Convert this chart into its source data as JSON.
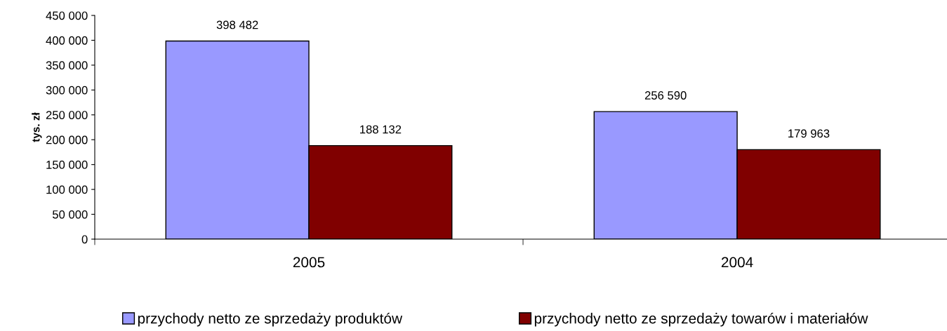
{
  "chart_data": {
    "type": "bar",
    "ylabel": "tys. zł",
    "categories": [
      "2005",
      "2004"
    ],
    "series": [
      {
        "name": "przychody netto ze sprzedaży produktów",
        "color": "#9999ff",
        "values": [
          398482,
          256590
        ],
        "value_labels": [
          "398 482",
          "256 590"
        ]
      },
      {
        "name": "przychody netto ze sprzedaży towarów i materiałów",
        "color": "#800000",
        "values": [
          188132,
          179963
        ],
        "value_labels": [
          "188 132",
          "179 963"
        ]
      }
    ],
    "ylim": [
      0,
      450000
    ],
    "yticks": [
      {
        "value": 0,
        "label": "0"
      },
      {
        "value": 50000,
        "label": "50 000"
      },
      {
        "value": 100000,
        "label": "100 000"
      },
      {
        "value": 150000,
        "label": "150 000"
      },
      {
        "value": 200000,
        "label": "200 000"
      },
      {
        "value": 250000,
        "label": "250 000"
      },
      {
        "value": 300000,
        "label": "300 000"
      },
      {
        "value": 350000,
        "label": "350 000"
      },
      {
        "value": 400000,
        "label": "400 000"
      },
      {
        "value": 450000,
        "label": "450 000"
      }
    ],
    "grid": false,
    "legend": "bottom"
  }
}
